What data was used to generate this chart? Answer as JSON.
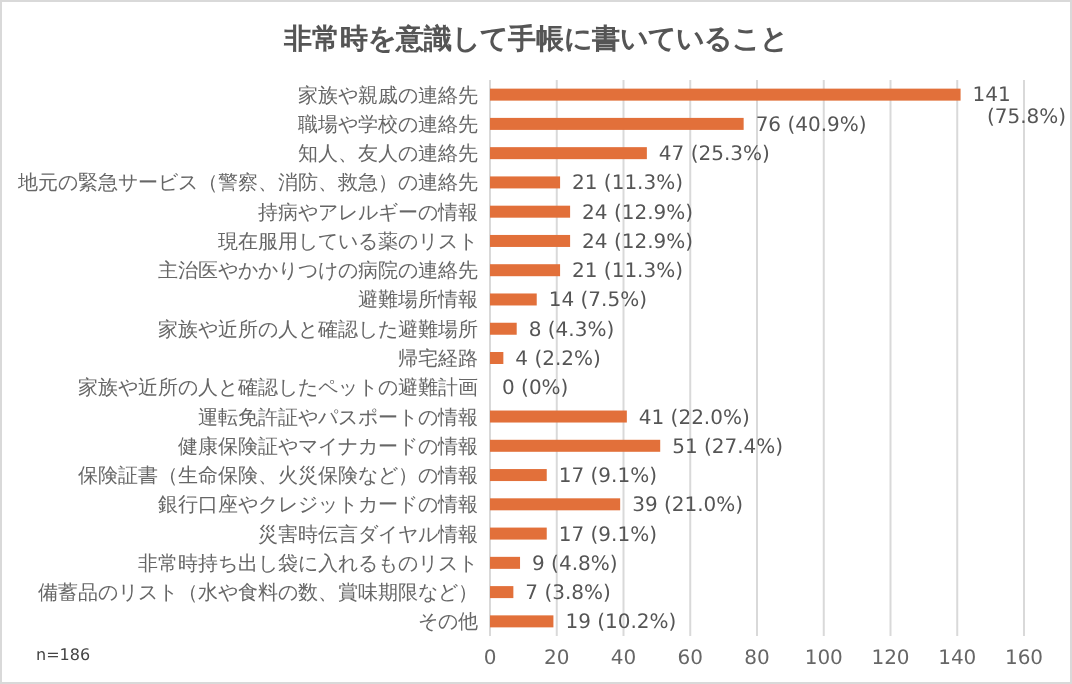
{
  "chart_data": {
    "type": "bar",
    "orientation": "horizontal",
    "title": "非常時を意識して手帳に書いていること",
    "categories": [
      "家族や親戚の連絡先",
      "職場や学校の連絡先",
      "知人、友人の連絡先",
      "地元の緊急サービス（警察、消防、救急）の連絡先",
      "持病やアレルギーの情報",
      "現在服用している薬のリスト",
      "主治医やかかりつけの病院の連絡先",
      "避難場所情報",
      "家族や近所の人と確認した避難場所",
      "帰宅経路",
      "家族や近所の人と確認したペットの避難計画",
      "運転免許証やパスポートの情報",
      "健康保険証やマイナカードの情報",
      "保険証書（生命保険、火災保険など）の情報",
      "銀行口座やクレジットカードの情報",
      "災害時伝言ダイヤル情報",
      "非常時持ち出し袋に入れるものリスト",
      "備蓄品のリスト（水や食料の数、賞味期限など）",
      "その他"
    ],
    "values": [
      141,
      76,
      47,
      21,
      24,
      24,
      21,
      14,
      8,
      4,
      0,
      41,
      51,
      17,
      39,
      17,
      9,
      7,
      19
    ],
    "value_labels": [
      "141 (75.8%)",
      "76 (40.9%)",
      "47 (25.3%)",
      "21 (11.3%)",
      "24 (12.9%)",
      "24 (12.9%)",
      "21 (11.3%)",
      "14 (7.5%)",
      "8 (4.3%)",
      "4 (2.2%)",
      "0 (0%)",
      "41 (22.0%)",
      "51 (27.4%)",
      "17 (9.1%)",
      "39 (21.0%)",
      "17 (9.1%)",
      "9 (4.8%)",
      "7 (3.8%)",
      "19 (10.2%)"
    ],
    "color": "#e2703a",
    "xlim": [
      0,
      160
    ],
    "xticks": [
      0,
      20,
      40,
      60,
      80,
      100,
      120,
      140,
      160
    ],
    "grid": "x",
    "annotations": [
      "n=186"
    ]
  }
}
